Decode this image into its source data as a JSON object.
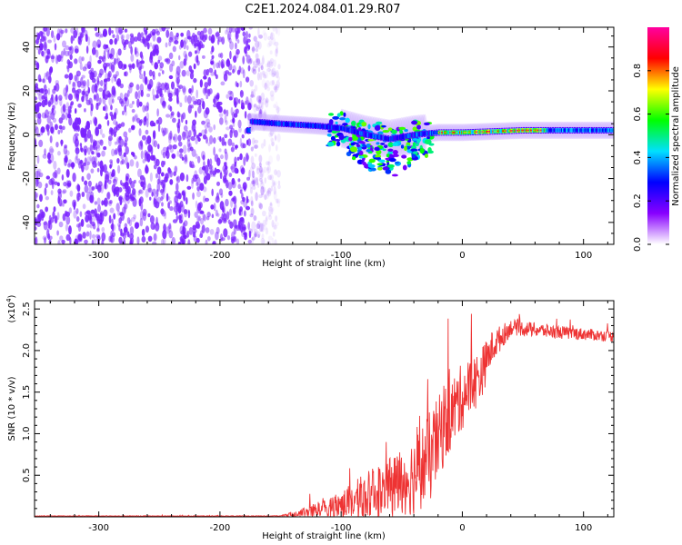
{
  "title": "C2E1.2024.084.01.29.R07",
  "chart_data": [
    {
      "type": "heatmap",
      "xlabel": "Height of straight line (km)",
      "ylabel": "Frequency (Hz)",
      "xlim": [
        -353,
        125
      ],
      "ylim": [
        -50,
        49
      ],
      "x_ticks": [
        -300,
        -200,
        -100,
        0,
        100
      ],
      "y_ticks": [
        -40,
        -20,
        0,
        20,
        40
      ],
      "colorbar": {
        "label": "Normalized spectral amplitude",
        "range": [
          0,
          1
        ],
        "ticks": [
          0.0,
          0.2,
          0.4,
          0.6,
          0.8
        ],
        "colors": [
          "#ffffff",
          "#8800ff",
          "#0000ff",
          "#00e0ff",
          "#00ff00",
          "#ffff00",
          "#ff0000",
          "#ff00a0"
        ]
      },
      "features": {
        "noise_region_x": [
          -353,
          -165
        ],
        "noise_color": "#7a22ff",
        "trace_center": [
          [
            -175,
            6
          ],
          [
            -150,
            5
          ],
          [
            -120,
            4
          ],
          [
            -100,
            3
          ],
          [
            -80,
            0
          ],
          [
            -60,
            -2
          ],
          [
            -40,
            0
          ],
          [
            -20,
            1
          ],
          [
            0,
            1
          ],
          [
            50,
            2
          ],
          [
            100,
            2
          ],
          [
            125,
            2
          ]
        ],
        "strong_segment_x": [
          -20,
          70
        ]
      }
    },
    {
      "type": "line",
      "xlabel": "Height of straight line (km)",
      "ylabel": "SNR (10 * v/v)",
      "y_multiplier_label": "(x10",
      "y_multiplier_exp": "4",
      "y_multiplier_close": ")",
      "xlim": [
        -353,
        125
      ],
      "ylim": [
        0,
        2.6
      ],
      "x_ticks": [
        -300,
        -200,
        -100,
        0,
        100
      ],
      "y_ticks": [
        0.5,
        1.0,
        1.5,
        2.0,
        2.5
      ],
      "series": [
        {
          "color": "#ee3333",
          "envelope": [
            {
              "x": -353,
              "base": 0.01,
              "noise": 0.005
            },
            {
              "x": -150,
              "base": 0.01,
              "noise": 0.005
            },
            {
              "x": -125,
              "base": 0.05,
              "noise": 0.12
            },
            {
              "x": -100,
              "base": 0.15,
              "noise": 0.2
            },
            {
              "x": -80,
              "base": 0.25,
              "noise": 0.35
            },
            {
              "x": -60,
              "base": 0.35,
              "noise": 0.45
            },
            {
              "x": -40,
              "base": 0.5,
              "noise": 0.6
            },
            {
              "x": -25,
              "base": 0.75,
              "noise": 0.7
            },
            {
              "x": -15,
              "base": 1.1,
              "noise": 0.6
            },
            {
              "x": 0,
              "base": 1.45,
              "noise": 0.5
            },
            {
              "x": 15,
              "base": 1.7,
              "noise": 0.4
            },
            {
              "x": 25,
              "base": 2.05,
              "noise": 0.25
            },
            {
              "x": 40,
              "base": 2.28,
              "noise": 0.12
            },
            {
              "x": 80,
              "base": 2.22,
              "noise": 0.1
            },
            {
              "x": 125,
              "base": 2.17,
              "noise": 0.08
            }
          ]
        }
      ]
    }
  ]
}
